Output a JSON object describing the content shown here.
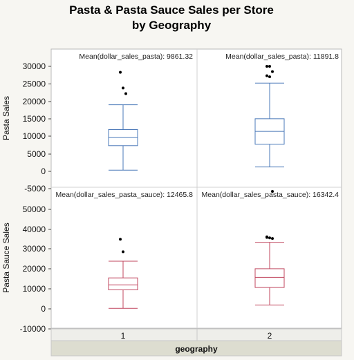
{
  "title": {
    "line1": "Pasta & Pasta Sauce Sales per Store",
    "line2": "by Geography"
  },
  "chart_data": {
    "type": "box",
    "xlabel": "geography",
    "categories": [
      "1",
      "2"
    ],
    "colors": {
      "pasta": "#4a78b8",
      "pasta_sauce": "#c0455e"
    },
    "rows": [
      {
        "key": "pasta",
        "ylabel": "Pasta Sales",
        "ylim": [
          -5000,
          31500
        ],
        "yticks": [
          "30000",
          "25000",
          "20000",
          "15000",
          "10000",
          "5000",
          "0",
          "-5000"
        ],
        "boxes": [
          {
            "category": "1",
            "mean_label": "Mean(dollar_sales_pasta): 9861.32",
            "whisker_low": 300,
            "q1": 7300,
            "median": 9700,
            "q3": 11900,
            "whisker_high": 19000,
            "outliers": [
              28300,
              23800,
              22200
            ]
          },
          {
            "category": "2",
            "mean_label": "Mean(dollar_sales_pasta): 11891.8",
            "whisker_low": 1200,
            "q1": 7700,
            "median": 11400,
            "q3": 15000,
            "whisker_high": 25200,
            "outliers": [
              30000,
              30000,
              28500,
              27300,
              27000,
              -5800
            ]
          }
        ]
      },
      {
        "key": "pasta_sauce",
        "ylabel": "Pasta  Sauce Sales",
        "ylim": [
          -10000,
          57000
        ],
        "yticks": [
          "50000",
          "40000",
          "30000",
          "20000",
          "10000",
          "0",
          "-10000"
        ],
        "boxes": [
          {
            "category": "1",
            "mean_label": "Mean(dollar_sales_pasta_sauce): 12465.8",
            "whisker_low": 300,
            "q1": 9600,
            "median": 12100,
            "q3": 15600,
            "whisker_high": 24000,
            "outliers": [
              35000,
              28700
            ]
          },
          {
            "category": "2",
            "mean_label": "Mean(dollar_sales_pasta_sauce): 16342.4",
            "whisker_low": 2000,
            "q1": 10800,
            "median": 15900,
            "q3": 20200,
            "whisker_high": 33500,
            "outliers": [
              36200,
              35700,
              35400,
              35900
            ]
          }
        ]
      }
    ]
  }
}
